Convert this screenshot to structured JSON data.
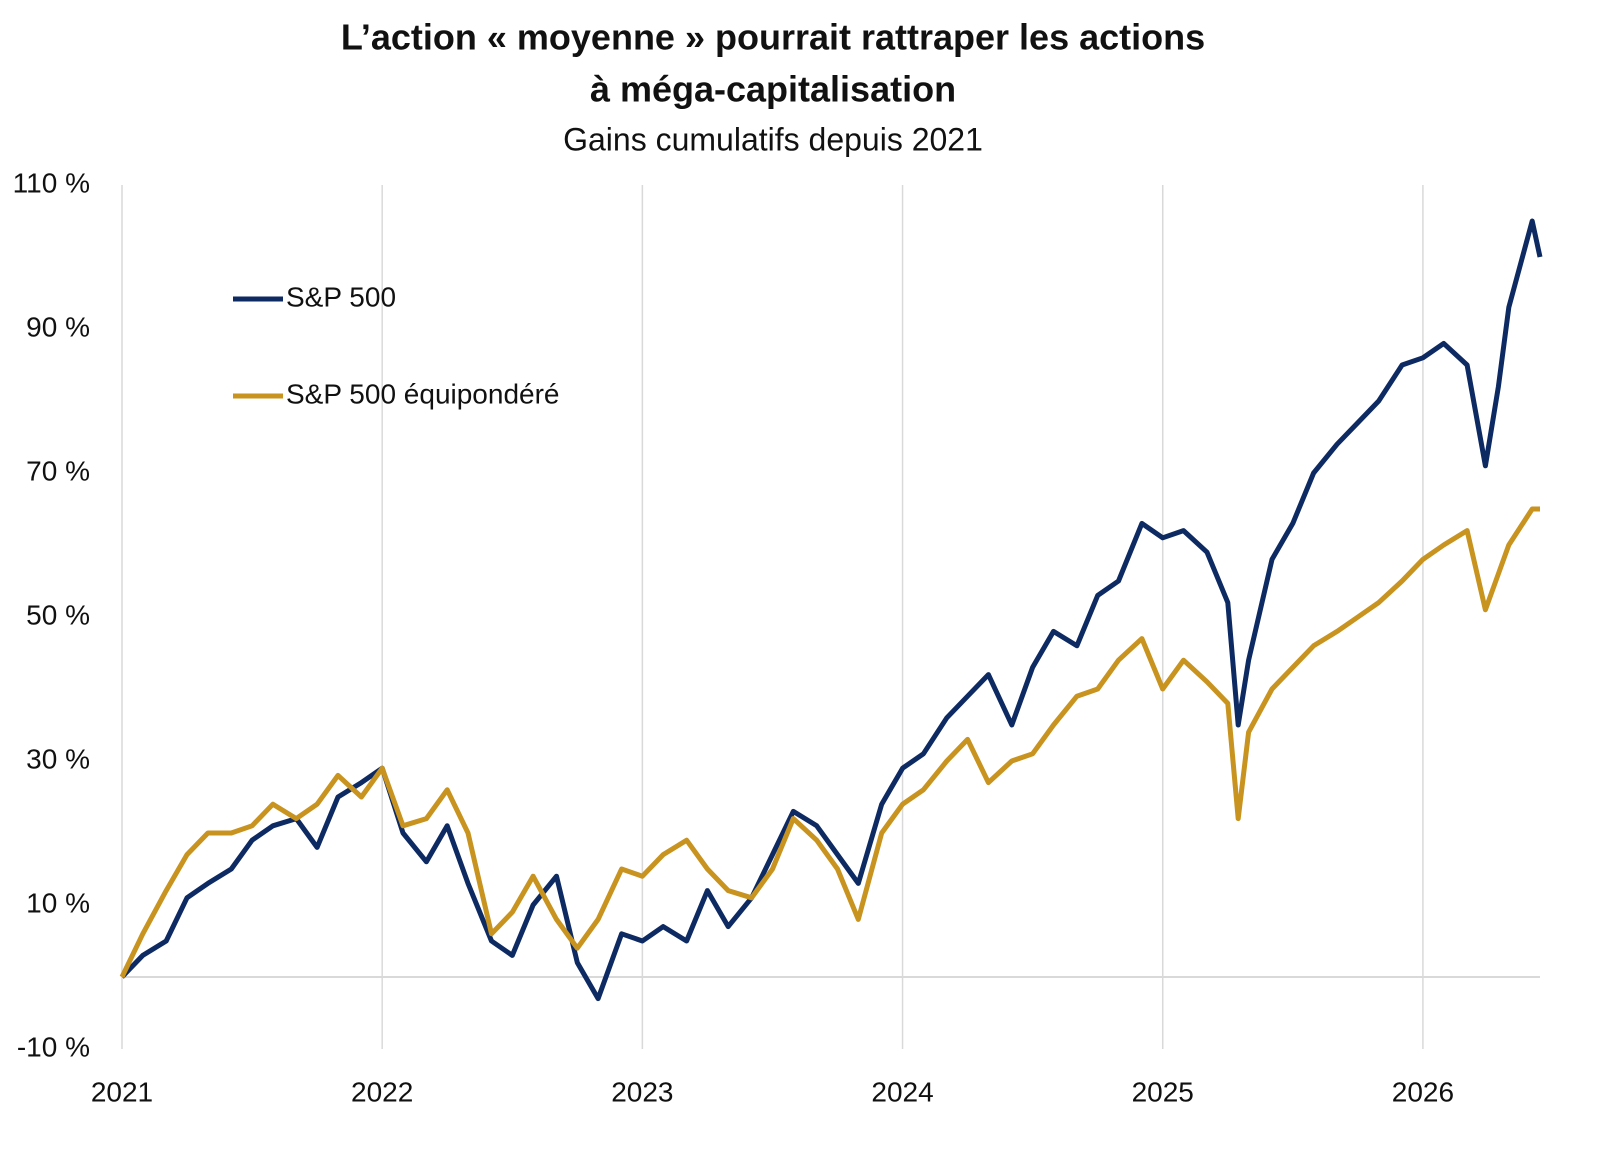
{
  "chart_data": {
    "type": "line",
    "title": [
      "L’action « moyenne » pourrait rattraper les actions",
      "à méga-capitalisation"
    ],
    "subtitle": "Gains cumulatifs depuis 2021",
    "x": [
      2021.0,
      2021.08,
      2021.17,
      2021.25,
      2021.33,
      2021.42,
      2021.5,
      2021.58,
      2021.67,
      2021.75,
      2021.83,
      2021.92,
      2022.0,
      2022.08,
      2022.17,
      2022.25,
      2022.33,
      2022.42,
      2022.5,
      2022.58,
      2022.67,
      2022.75,
      2022.83,
      2022.92,
      2023.0,
      2023.08,
      2023.17,
      2023.25,
      2023.33,
      2023.42,
      2023.5,
      2023.58,
      2023.67,
      2023.75,
      2023.83,
      2023.92,
      2024.0,
      2024.08,
      2024.17,
      2024.25,
      2024.33,
      2024.42,
      2024.5,
      2024.58,
      2024.67,
      2024.75,
      2024.83,
      2024.92,
      2025.0,
      2025.08,
      2025.17,
      2025.25,
      2025.29,
      2025.33,
      2025.42,
      2025.5,
      2025.58,
      2025.67,
      2025.75,
      2025.83,
      2025.92,
      2026.0,
      2026.08,
      2026.17,
      2026.24,
      2026.29,
      2026.33,
      2026.42,
      2026.45
    ],
    "series": [
      {
        "name": "S&P 500",
        "color": "#0d2a63",
        "values": [
          0,
          3,
          5,
          11,
          13,
          15,
          19,
          21,
          22,
          18,
          25,
          27,
          29,
          20,
          16,
          21,
          13,
          5,
          3,
          10,
          14,
          2,
          -3,
          6,
          5,
          7,
          5,
          12,
          7,
          11,
          17,
          23,
          21,
          17,
          13,
          24,
          29,
          31,
          36,
          39,
          42,
          35,
          43,
          48,
          46,
          53,
          55,
          63,
          61,
          62,
          59,
          52,
          35,
          44,
          58,
          63,
          70,
          74,
          77,
          80,
          85,
          86,
          88,
          85,
          71,
          82,
          93,
          105,
          100
        ]
      },
      {
        "name": "S&P 500 équipondéré",
        "color": "#c8931f",
        "values": [
          0,
          6,
          12,
          17,
          20,
          20,
          21,
          24,
          22,
          24,
          28,
          25,
          29,
          21,
          22,
          26,
          20,
          6,
          9,
          14,
          8,
          4,
          8,
          15,
          14,
          17,
          19,
          15,
          12,
          11,
          15,
          22,
          19,
          15,
          8,
          20,
          24,
          26,
          30,
          33,
          27,
          30,
          31,
          35,
          39,
          40,
          44,
          47,
          40,
          44,
          41,
          38,
          22,
          34,
          40,
          43,
          46,
          48,
          50,
          52,
          55,
          58,
          60,
          62,
          51,
          56,
          60,
          65,
          65
        ]
      }
    ],
    "xlim": [
      2021,
      2026.45
    ],
    "xticks": [
      2021,
      2022,
      2023,
      2024,
      2025,
      2026
    ],
    "ylim": [
      -10,
      110
    ],
    "yticks": [
      {
        "value": -10,
        "label": "-10 %"
      },
      {
        "value": 10,
        "label": "10 %"
      },
      {
        "value": 30,
        "label": "30 %"
      },
      {
        "value": 50,
        "label": "50 %"
      },
      {
        "value": 70,
        "label": "70 %"
      },
      {
        "value": 90,
        "label": "90 %"
      },
      {
        "value": 110,
        "label": "110 %"
      }
    ],
    "grid": "x",
    "legend": "upper left"
  }
}
